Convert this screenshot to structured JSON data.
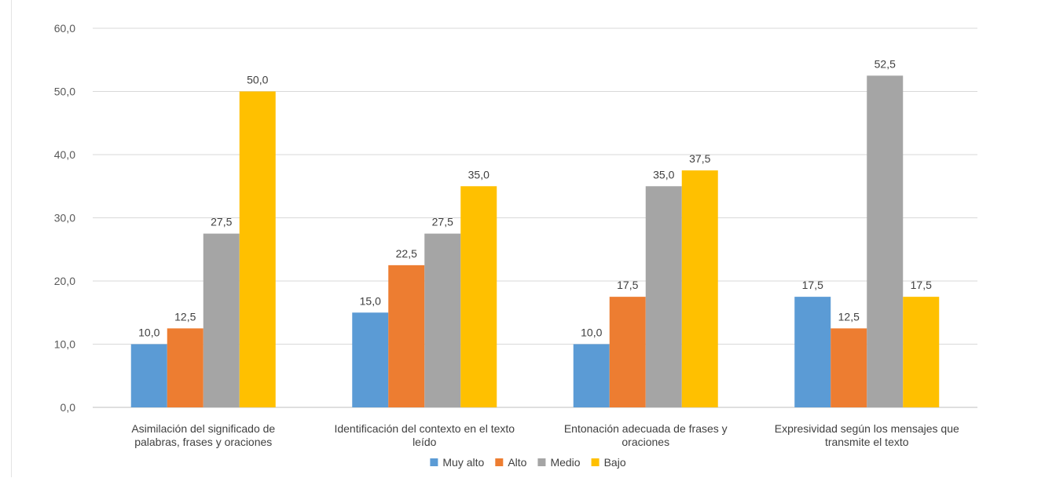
{
  "chart_data": {
    "type": "bar",
    "title": "",
    "xlabel": "",
    "ylabel": "",
    "ylim": [
      0,
      60
    ],
    "yticks": [
      "0,0",
      "10,0",
      "20,0",
      "30,0",
      "40,0",
      "50,0",
      "60,0"
    ],
    "grid": true,
    "legend_position": "bottom",
    "categories": [
      [
        "Asimilación del significado de",
        "palabras, frases y oraciones"
      ],
      [
        "Identificación del contexto en el texto",
        "leído"
      ],
      [
        "Entonación adecuada de frases y",
        "oraciones"
      ],
      [
        "Expresividad según los mensajes que",
        "transmite el texto"
      ]
    ],
    "series": [
      {
        "name": "Muy alto",
        "color": "#5b9bd5",
        "values": [
          10.0,
          15.0,
          10.0,
          17.5
        ],
        "labels": [
          "10,0",
          "15,0",
          "10,0",
          "17,5"
        ]
      },
      {
        "name": "Alto",
        "color": "#ed7d31",
        "values": [
          12.5,
          22.5,
          17.5,
          12.5
        ],
        "labels": [
          "12,5",
          "22,5",
          "17,5",
          "12,5"
        ]
      },
      {
        "name": "Medio",
        "color": "#a5a5a5",
        "values": [
          27.5,
          27.5,
          35.0,
          52.5
        ],
        "labels": [
          "27,5",
          "27,5",
          "35,0",
          "52,5"
        ]
      },
      {
        "name": "Bajo",
        "color": "#ffc000",
        "values": [
          50.0,
          35.0,
          37.5,
          17.5
        ],
        "labels": [
          "50,0",
          "35,0",
          "37,5",
          "17,5"
        ]
      }
    ]
  }
}
